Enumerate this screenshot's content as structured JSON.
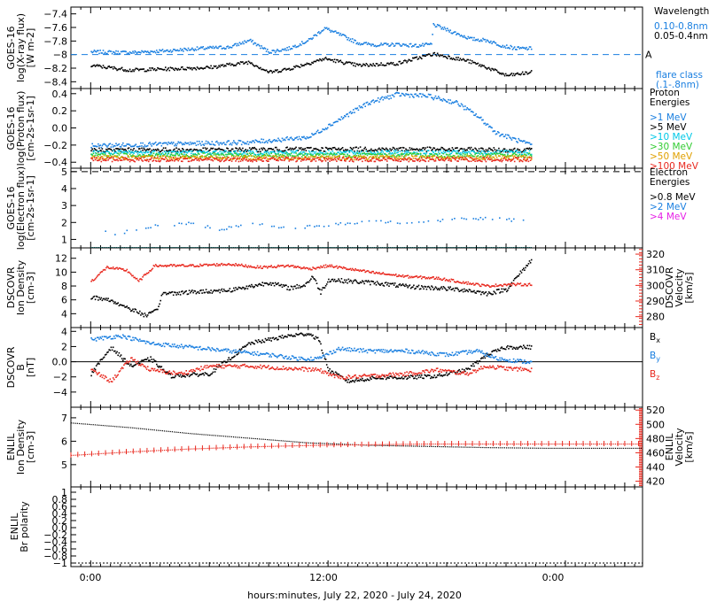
{
  "footer": {
    "xlabel": "hours:minutes, July 22, 2020 - July 24, 2020"
  },
  "x_ticks": [
    "0:00",
    "12:00",
    "0:00"
  ],
  "chart_data": [
    {
      "type": "scatter",
      "ylabel": [
        "GOES-16",
        "log(X-ray flux)",
        "[W m-2]"
      ],
      "ylim": [
        -8.5,
        -7.3
      ],
      "yticks": [
        -7.4,
        -7.6,
        -7.8,
        -8.0,
        -8.2,
        -8.4
      ],
      "flare_line": {
        "y": -8.0,
        "label": "A"
      },
      "legend_title": "Wavelength",
      "series": [
        {
          "name": "0.10-0.8nm",
          "color": "#1a7fe0",
          "points": [
            [
              0.0,
              -7.95
            ],
            [
              2.0,
              -7.96
            ],
            [
              4.0,
              -7.93
            ],
            [
              5.5,
              -7.9
            ],
            [
              7.0,
              -7.88
            ],
            [
              8.0,
              -7.78
            ],
            [
              9.0,
              -7.95
            ],
            [
              10.0,
              -7.9
            ],
            [
              11.0,
              -7.78
            ],
            [
              11.8,
              -7.6
            ],
            [
              12.6,
              -7.7
            ],
            [
              13.5,
              -7.82
            ],
            [
              14.5,
              -7.85
            ],
            [
              15.5,
              -7.84
            ],
            [
              16.5,
              -7.86
            ],
            [
              17.2,
              -7.84
            ],
            [
              17.3,
              -7.55
            ],
            [
              18.2,
              -7.65
            ],
            [
              19.2,
              -7.76
            ],
            [
              20.0,
              -7.78
            ],
            [
              20.8,
              -7.86
            ],
            [
              21.5,
              -7.9
            ],
            [
              22.3,
              -7.9
            ]
          ]
        },
        {
          "name": "0.05-0.4nm",
          "color": "#000000",
          "points": [
            [
              0.0,
              -8.15
            ],
            [
              2.0,
              -8.22
            ],
            [
              4.0,
              -8.2
            ],
            [
              6.0,
              -8.18
            ],
            [
              8.0,
              -8.1
            ],
            [
              9.0,
              -8.25
            ],
            [
              10.0,
              -8.2
            ],
            [
              11.8,
              -8.05
            ],
            [
              13.5,
              -8.15
            ],
            [
              15.5,
              -8.12
            ],
            [
              17.3,
              -7.98
            ],
            [
              19.0,
              -8.08
            ],
            [
              20.0,
              -8.18
            ],
            [
              21.0,
              -8.3
            ],
            [
              22.3,
              -8.25
            ]
          ]
        }
      ],
      "footnote": [
        "flare class",
        "(.1-.8nm)"
      ]
    },
    {
      "type": "scatter",
      "ylabel": [
        "GOES-16",
        "log(Proton flux)",
        "[cm-2s-1sr-1]"
      ],
      "ylim": [
        -0.47,
        0.46
      ],
      "yticks": [
        0.4,
        0.2,
        0.0,
        -0.2,
        -0.4
      ],
      "legend_title": [
        "Proton",
        "Energies"
      ],
      "series": [
        {
          "name": ">1 MeV",
          "color": "#1a7fe0",
          "points": [
            [
              0.0,
              -0.2
            ],
            [
              4.0,
              -0.18
            ],
            [
              8.0,
              -0.16
            ],
            [
              11.0,
              -0.1
            ],
            [
              12.5,
              0.1
            ],
            [
              14.0,
              0.3
            ],
            [
              15.5,
              0.4
            ],
            [
              17.0,
              0.38
            ],
            [
              18.5,
              0.3
            ],
            [
              19.5,
              0.15
            ],
            [
              20.5,
              -0.05
            ],
            [
              22.3,
              -0.2
            ]
          ]
        },
        {
          "name": ">5 MeV",
          "color": "#000000",
          "points": [
            [
              0.0,
              -0.25
            ],
            [
              6.0,
              -0.25
            ],
            [
              11.0,
              -0.24
            ],
            [
              16.0,
              -0.24
            ],
            [
              22.3,
              -0.25
            ]
          ]
        },
        {
          "name": ">10 MeV",
          "color": "#00c8e6",
          "points": [
            [
              0.0,
              -0.28
            ],
            [
              11.0,
              -0.28
            ],
            [
              22.3,
              -0.28
            ]
          ]
        },
        {
          "name": ">30 MeV",
          "color": "#33cc33",
          "points": [
            [
              0.0,
              -0.31
            ],
            [
              11.0,
              -0.31
            ],
            [
              22.3,
              -0.31
            ]
          ]
        },
        {
          "name": ">50 MeV",
          "color": "#e0a000",
          "points": [
            [
              0.0,
              -0.34
            ],
            [
              11.0,
              -0.34
            ],
            [
              22.3,
              -0.34
            ]
          ]
        },
        {
          "name": ">100 MeV",
          "color": "#e8281e",
          "points": [
            [
              0.0,
              -0.36
            ],
            [
              11.0,
              -0.36
            ],
            [
              22.3,
              -0.36
            ]
          ]
        }
      ]
    },
    {
      "type": "scatter",
      "ylabel": [
        "GOES-16",
        "log(Electron flux)",
        "[cm-2s-1sr-1]"
      ],
      "ylim": [
        0.5,
        5.2
      ],
      "yticks": [
        5,
        4,
        3,
        2,
        1
      ],
      "ref_line": 5,
      "legend_title": [
        "Electron",
        "Energies"
      ],
      "series": [
        {
          "name": ">0.8 MeV",
          "color": "#000000",
          "points": []
        },
        {
          "name": ">2 MeV",
          "color": "#1a7fe0",
          "points": [
            [
              0.0,
              2.1
            ],
            [
              1.0,
              1.3
            ],
            [
              3.0,
              1.8
            ],
            [
              5.0,
              2.0
            ],
            [
              6.5,
              1.6
            ],
            [
              8.0,
              2.0
            ],
            [
              10.0,
              1.7
            ],
            [
              12.0,
              1.9
            ],
            [
              14.0,
              2.1
            ],
            [
              16.0,
              2.0
            ],
            [
              18.0,
              2.2
            ],
            [
              20.0,
              2.3
            ],
            [
              22.3,
              2.1
            ]
          ]
        },
        {
          "name": ">4 MeV",
          "color": "#e61ee6",
          "points": []
        }
      ],
      "baseline_series": {
        "color": "#008c8c",
        "y": 0.55,
        "x_range": [
          0.0,
          22.3
        ]
      }
    },
    {
      "type": "scatter",
      "ylabel": [
        "DSCOVR",
        "Ion Density",
        "[cm-3]"
      ],
      "ylim": [
        2.0,
        13.5
      ],
      "yticks": [
        12,
        10,
        8,
        6,
        4
      ],
      "y2label": [
        "DSCOVR",
        "Velocity",
        "[km/s]"
      ],
      "y2lim": [
        273,
        324
      ],
      "y2ticks": [
        320,
        310,
        300,
        290,
        280
      ],
      "series": [
        {
          "name": "Density",
          "color": "#000000",
          "axis": "left",
          "points": [
            [
              0.0,
              6.5
            ],
            [
              1.0,
              6.0
            ],
            [
              1.8,
              5.0
            ],
            [
              2.8,
              3.8
            ],
            [
              3.3,
              4.5
            ],
            [
              3.6,
              7.0
            ],
            [
              5.0,
              7.2
            ],
            [
              7.0,
              7.5
            ],
            [
              8.0,
              8.0
            ],
            [
              9.0,
              8.6
            ],
            [
              10.0,
              7.8
            ],
            [
              10.8,
              8.2
            ],
            [
              11.2,
              9.5
            ],
            [
              11.6,
              7.2
            ],
            [
              12.0,
              9.0
            ],
            [
              13.0,
              8.8
            ],
            [
              14.5,
              8.5
            ],
            [
              16.0,
              8.0
            ],
            [
              17.5,
              7.8
            ],
            [
              19.0,
              7.5
            ],
            [
              20.0,
              7.0
            ],
            [
              21.0,
              7.6
            ],
            [
              22.3,
              12.0
            ]
          ]
        },
        {
          "name": "Velocity",
          "color": "#e8281e",
          "axis": "right",
          "points": [
            [
              0.0,
              303
            ],
            [
              0.8,
              312
            ],
            [
              1.8,
              310
            ],
            [
              2.4,
              303
            ],
            [
              3.2,
              313
            ],
            [
              5.0,
              313
            ],
            [
              7.0,
              314
            ],
            [
              8.5,
              312
            ],
            [
              10.0,
              313
            ],
            [
              11.0,
              311
            ],
            [
              12.0,
              313
            ],
            [
              14.0,
              309
            ],
            [
              16.0,
              306
            ],
            [
              17.5,
              305
            ],
            [
              19.0,
              302
            ],
            [
              20.0,
              300
            ],
            [
              21.0,
              301
            ],
            [
              22.3,
              301
            ]
          ]
        }
      ]
    },
    {
      "type": "scatter",
      "ylabel": [
        "DSCOVR",
        "B",
        "[nT]"
      ],
      "ylim": [
        -6.0,
        4.5
      ],
      "yticks": [
        4,
        2,
        0,
        -2,
        -4
      ],
      "zero_line": true,
      "series": [
        {
          "name": "Bx",
          "color": "#000000",
          "points": [
            [
              0.0,
              -1.5
            ],
            [
              1.0,
              2.0
            ],
            [
              2.0,
              -0.5
            ],
            [
              3.0,
              0.5
            ],
            [
              4.0,
              -1.8
            ],
            [
              6.0,
              -1.5
            ],
            [
              8.0,
              2.5
            ],
            [
              9.0,
              3.0
            ],
            [
              10.0,
              3.5
            ],
            [
              11.0,
              3.8
            ],
            [
              11.5,
              3.0
            ],
            [
              12.0,
              -1.0
            ],
            [
              13.0,
              -2.5
            ],
            [
              14.5,
              -2.0
            ],
            [
              16.0,
              -2.0
            ],
            [
              17.5,
              -1.8
            ],
            [
              19.0,
              -1.0
            ],
            [
              20.0,
              1.0
            ],
            [
              21.0,
              2.0
            ],
            [
              22.3,
              2.0
            ]
          ]
        },
        {
          "name": "By",
          "color": "#1a7fe0",
          "points": [
            [
              0.0,
              3.0
            ],
            [
              1.5,
              3.5
            ],
            [
              3.0,
              2.5
            ],
            [
              5.0,
              2.0
            ],
            [
              7.0,
              1.5
            ],
            [
              9.0,
              1.0
            ],
            [
              10.5,
              0.5
            ],
            [
              11.5,
              0.5
            ],
            [
              12.5,
              1.8
            ],
            [
              14.0,
              1.5
            ],
            [
              16.0,
              1.5
            ],
            [
              18.0,
              1.0
            ],
            [
              19.5,
              1.5
            ],
            [
              20.5,
              0.5
            ],
            [
              21.5,
              0.2
            ],
            [
              22.3,
              0.0
            ]
          ]
        },
        {
          "name": "Bz",
          "color": "#e8281e",
          "points": [
            [
              0.0,
              -1.0
            ],
            [
              1.0,
              -2.5
            ],
            [
              2.0,
              0.5
            ],
            [
              3.0,
              -1.0
            ],
            [
              4.5,
              -1.5
            ],
            [
              6.0,
              -0.5
            ],
            [
              8.0,
              -0.5
            ],
            [
              10.0,
              -0.8
            ],
            [
              11.5,
              -1.0
            ],
            [
              12.5,
              -2.0
            ],
            [
              14.0,
              -1.8
            ],
            [
              16.0,
              -1.5
            ],
            [
              17.5,
              -1.0
            ],
            [
              19.0,
              -1.5
            ],
            [
              20.0,
              -0.5
            ],
            [
              21.0,
              -0.8
            ],
            [
              22.3,
              -1.0
            ]
          ]
        }
      ]
    },
    {
      "type": "scatter",
      "ylabel": [
        "ENLIL",
        "Ion Density",
        "[cm-3]"
      ],
      "ylim": [
        4.05,
        7.45
      ],
      "yticks": [
        7,
        6,
        5
      ],
      "y2label": [
        "ENLIL",
        "Velocity",
        "[km/s]"
      ],
      "y2lim": [
        412,
        524
      ],
      "y2ticks": [
        520,
        500,
        480,
        460,
        440,
        420
      ],
      "series": [
        {
          "name": "Density",
          "color": "#000000",
          "axis": "left",
          "points": [
            [
              -1.0,
              6.8
            ],
            [
              2.0,
              6.6
            ],
            [
              5.0,
              6.35
            ],
            [
              8.0,
              6.15
            ],
            [
              11.0,
              5.95
            ],
            [
              14.0,
              5.85
            ],
            [
              17.0,
              5.8
            ],
            [
              20.0,
              5.75
            ],
            [
              23.0,
              5.72
            ],
            [
              26.0,
              5.72
            ],
            [
              27.9,
              5.72
            ]
          ]
        },
        {
          "name": "Velocity",
          "color": "#e8281e",
          "axis": "right",
          "points": [
            [
              -1.0,
              457
            ],
            [
              2.0,
              462
            ],
            [
              5.0,
              466
            ],
            [
              8.0,
              469
            ],
            [
              11.0,
              471
            ],
            [
              14.0,
              472
            ],
            [
              17.0,
              473
            ],
            [
              20.0,
              473
            ],
            [
              23.0,
              473
            ],
            [
              26.0,
              473
            ],
            [
              27.9,
              473
            ]
          ]
        }
      ]
    },
    {
      "type": "line",
      "ylabel": [
        "ENLIL",
        "Br polarity"
      ],
      "ylim": [
        -1.1,
        1.15
      ],
      "yticks": [
        1.0,
        0.8,
        0.6,
        0.4,
        0.2,
        0.0,
        -0.2,
        -0.4,
        -0.6,
        -0.8,
        -1.0
      ],
      "series": [
        {
          "name": "polarity",
          "color": "#000000",
          "points": [
            [
              -1.0,
              -1.0
            ],
            [
              27.9,
              -1.0
            ]
          ]
        }
      ]
    }
  ]
}
